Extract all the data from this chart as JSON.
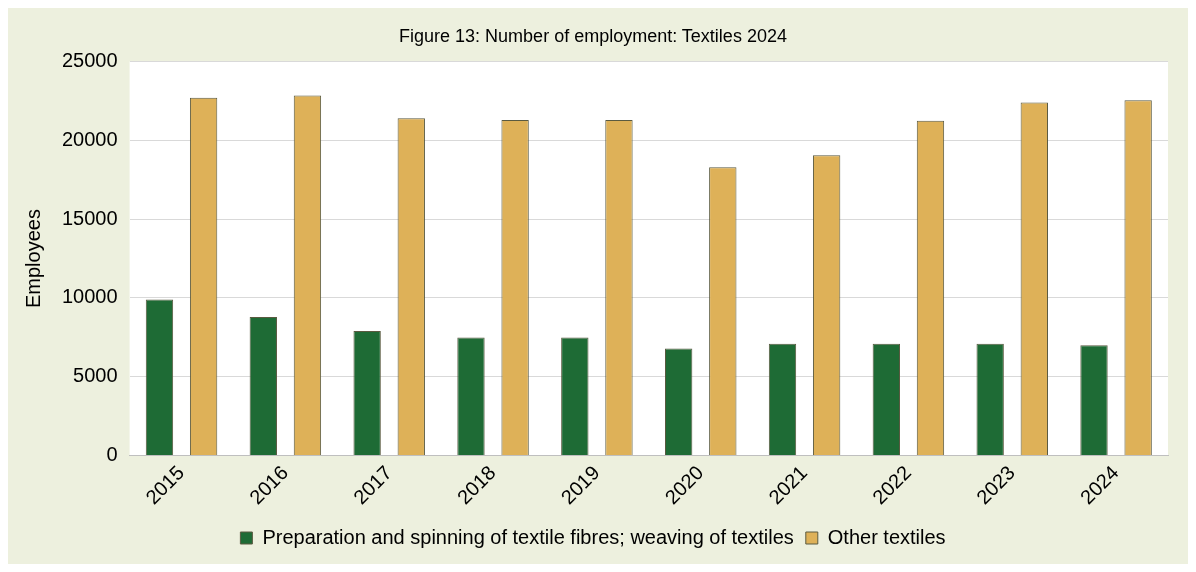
{
  "chart_data": {
    "type": "bar",
    "title": "Figure 13: Number of employment: Textiles 2024",
    "ylabel": "Employees",
    "categories": [
      "2015",
      "2016",
      "2017",
      "2018",
      "2019",
      "2020",
      "2021",
      "2022",
      "2023",
      "2024"
    ],
    "series": [
      {
        "name": "Preparation and spinning of textile fibres; weaving of textiles",
        "color": "#1e6b35",
        "values": [
          9900,
          8800,
          7900,
          7500,
          7500,
          6800,
          7100,
          7100,
          7100,
          7000
        ]
      },
      {
        "name": "Other textiles",
        "color": "#deb158",
        "values": [
          22700,
          22850,
          21400,
          21300,
          21300,
          18300,
          19050,
          21250,
          22400,
          22550
        ]
      }
    ],
    "ylim": [
      0,
      25000
    ],
    "yticks": [
      0,
      5000,
      10000,
      15000,
      20000,
      25000
    ],
    "grid": "y",
    "legend": "bottom"
  }
}
